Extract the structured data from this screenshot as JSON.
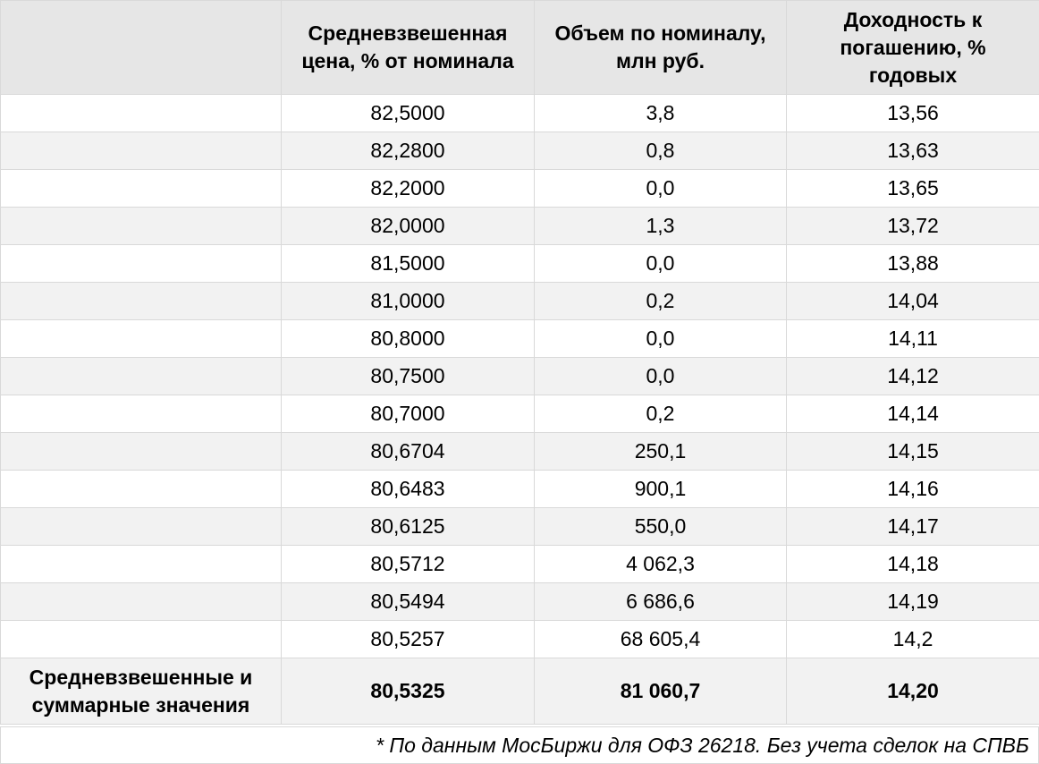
{
  "table": {
    "headers": [
      "",
      "Средневзвешенная цена, % от номинала",
      "Объем по номиналу, млн руб.",
      "Доходность к погашению, % годовых"
    ],
    "rows": [
      {
        "label": "",
        "price": "82,5000",
        "volume": "3,8",
        "yield": "13,56"
      },
      {
        "label": "",
        "price": "82,2800",
        "volume": "0,8",
        "yield": "13,63"
      },
      {
        "label": "",
        "price": "82,2000",
        "volume": "0,0",
        "yield": "13,65"
      },
      {
        "label": "",
        "price": "82,0000",
        "volume": "1,3",
        "yield": "13,72"
      },
      {
        "label": "",
        "price": "81,5000",
        "volume": "0,0",
        "yield": "13,88"
      },
      {
        "label": "",
        "price": "81,0000",
        "volume": "0,2",
        "yield": "14,04"
      },
      {
        "label": "",
        "price": "80,8000",
        "volume": "0,0",
        "yield": "14,11"
      },
      {
        "label": "",
        "price": "80,7500",
        "volume": "0,0",
        "yield": "14,12"
      },
      {
        "label": "",
        "price": "80,7000",
        "volume": "0,2",
        "yield": "14,14"
      },
      {
        "label": "",
        "price": "80,6704",
        "volume": "250,1",
        "yield": "14,15"
      },
      {
        "label": "",
        "price": "80,6483",
        "volume": "900,1",
        "yield": "14,16"
      },
      {
        "label": "",
        "price": "80,6125",
        "volume": "550,0",
        "yield": "14,17"
      },
      {
        "label": "",
        "price": "80,5712",
        "volume": "4 062,3",
        "yield": "14,18"
      },
      {
        "label": "",
        "price": "80,5494",
        "volume": "6 686,6",
        "yield": "14,19"
      },
      {
        "label": "",
        "price": "80,5257",
        "volume": "68 605,4",
        "yield": "14,2"
      }
    ],
    "totals": {
      "label": "Средневзвешенные и суммарные значения",
      "price": "80,5325",
      "volume": "81 060,7",
      "yield": "14,20"
    }
  },
  "footnote": "* По данным МосБиржи для ОФЗ 26218. Без учета сделок на СПВБ"
}
